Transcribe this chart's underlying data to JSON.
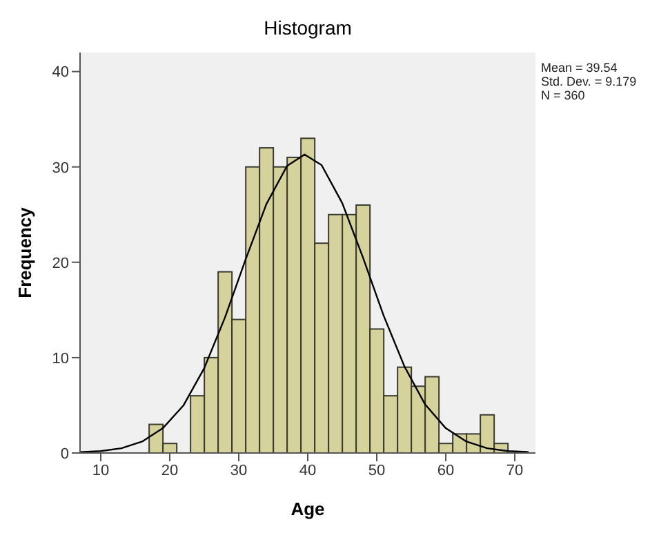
{
  "chart_data": {
    "type": "histogram",
    "title": "Histogram",
    "xlabel": "Age",
    "ylabel": "Frequency",
    "annotations": [
      "Mean = 39.54",
      "Std. Dev. = 9.179",
      "N = 360"
    ],
    "bins": [
      17,
      19,
      21,
      23,
      25,
      27,
      29,
      31,
      33,
      35,
      37,
      39,
      41,
      43,
      45,
      47,
      49,
      51,
      53,
      55,
      57,
      59,
      61,
      63,
      65,
      67,
      69
    ],
    "values": [
      3,
      1,
      0,
      6,
      10,
      19,
      14,
      30,
      32,
      30,
      31,
      33,
      22,
      25,
      25,
      26,
      13,
      6,
      9,
      7,
      8,
      1,
      2,
      2,
      4,
      1
    ],
    "color": "#d6d29c",
    "xlim": [
      7,
      73
    ],
    "xticks": [
      10,
      20,
      30,
      40,
      50,
      60,
      70
    ],
    "ylim": [
      0,
      42
    ],
    "yticks": [
      0,
      10,
      20,
      30,
      40
    ],
    "series": [
      {
        "type": "line",
        "color": "#000000",
        "x": [
          7,
          10,
          13,
          16,
          19,
          22,
          25,
          28,
          31,
          34,
          37,
          39.54,
          42,
          45,
          48,
          51,
          54,
          57,
          60,
          63,
          66,
          69,
          72
        ],
        "values": [
          0.1,
          0.2,
          0.5,
          1.2,
          2.6,
          5.0,
          8.9,
          14.2,
          20.3,
          26.1,
          30.1,
          31.3,
          30.2,
          26.2,
          20.5,
          14.4,
          9.1,
          5.1,
          2.6,
          1.2,
          0.5,
          0.2,
          0.1
        ]
      }
    ]
  }
}
